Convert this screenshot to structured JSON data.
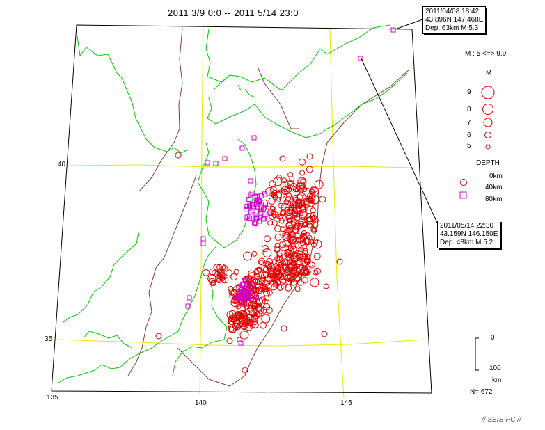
{
  "title": "2011 3/9 0:0 -- 2011 5/14 23:0",
  "callouts": [
    {
      "line1": "2011/04/08 18:42",
      "line2": "43.896N  147.468E",
      "line3": "Dep. 63km   M 5.3"
    },
    {
      "line1": "2011/05/14 22:30",
      "line2": "43.159N  146.150E",
      "line3": "Dep. 48km   M 5.2"
    }
  ],
  "legend": {
    "m_range": "M : 5 <=> 9.9",
    "m_header": "M",
    "magnitudes": [
      {
        "label": "9",
        "m": 9
      },
      {
        "label": "8",
        "m": 8
      },
      {
        "label": "7",
        "m": 7
      },
      {
        "label": "6",
        "m": 6
      },
      {
        "label": "5",
        "m": 5
      }
    ],
    "depth_header": "DEPTH",
    "depths": [
      {
        "label": "0km",
        "symbol": "circle",
        "color": "#e00000"
      },
      {
        "label": "40km",
        "symbol": "circle",
        "color": "#e00000"
      },
      {
        "label": "80km",
        "symbol": "square",
        "color": "#d000d0"
      }
    ]
  },
  "scale": {
    "top_label": "0",
    "bottom_label": "100",
    "unit": "km"
  },
  "count_label": "N= 672",
  "footer": "// SEIS-PC //",
  "colors": {
    "coast": "#00cc00",
    "grid": "#e8e800",
    "plate": "#8b3a2e",
    "shallow": "#e00000",
    "deep": "#d000d0"
  },
  "chart_data": {
    "type": "scatter",
    "title": "2011 3/9 0:0 -- 2011 5/14 23:0",
    "projection": "conic map, lon 135-148E, lat 34-45N",
    "lon_ticks": [
      135,
      140,
      145
    ],
    "lat_ticks": [
      35,
      40
    ],
    "event_count": 672,
    "magnitude_range": [
      5,
      9.9
    ],
    "series": [
      {
        "name": "0km",
        "symbol": "circle",
        "note": "shallow events (red circles)"
      },
      {
        "name": "80km",
        "symbol": "square",
        "note": "deep events (magenta squares)"
      }
    ],
    "highlighted_events": [
      {
        "time": "2011/04/08 18:42",
        "lat": 43.896,
        "lon": 147.468,
        "depth_km": 63,
        "magnitude": 5.3
      },
      {
        "time": "2011/05/14 22:30",
        "lat": 43.159,
        "lon": 146.15,
        "depth_km": 48,
        "magnitude": 5.2
      }
    ]
  }
}
